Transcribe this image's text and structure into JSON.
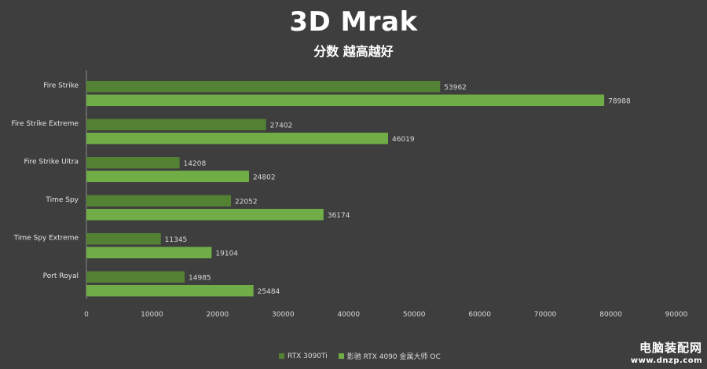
{
  "chart_data": {
    "type": "bar",
    "orientation": "horizontal",
    "title": "3D Mrak",
    "subtitle": "分数 越高越好",
    "categories": [
      "Fire Strike",
      "Fire Strike Extreme",
      "Fire Strike Ultra",
      "Time Spy",
      "Time Spy Extreme",
      "Port Royal"
    ],
    "series": [
      {
        "name": "RTX 3090Ti",
        "color": "#548235",
        "values": [
          53962,
          27402,
          14208,
          22052,
          11345,
          14985
        ]
      },
      {
        "name": "影驰 RTX 4090 金属大师 OC",
        "color": "#70ad47",
        "values": [
          78988,
          46019,
          24802,
          36174,
          19104,
          25484
        ]
      }
    ],
    "xlim": [
      0,
      90000
    ],
    "xticks": [
      0,
      10000,
      20000,
      30000,
      40000,
      50000,
      60000,
      70000,
      80000,
      90000
    ],
    "grid": false,
    "legend_position": "bottom"
  },
  "watermark": {
    "name": "电脑装配网",
    "url": "www.dnzp.com"
  }
}
